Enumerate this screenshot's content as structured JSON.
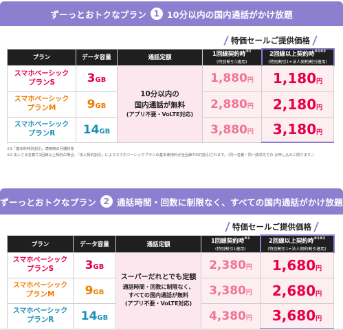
{
  "block1": {
    "title_pre": "ずーっとおトクなプラン",
    "number": "1",
    "title_post": "10分以内の国内通話がかけ放題",
    "sale": "特価セールご提供価格",
    "headers": {
      "plan": "プラン",
      "data": "データ容量",
      "call": "通話定額",
      "p1_main": "1回線契約時",
      "p1_sup": "※1",
      "p1_sub": "(特別割引1適用)",
      "p2_main": "2回線以上契約時",
      "p2_sup": "※1※2",
      "p2_sub": "(特別割引1+法人契約割引適用)"
    },
    "call_lines": [
      "10分以内の",
      "国内通話が無料",
      "(アプリ不要・VoLTE対応)"
    ],
    "rows": [
      {
        "name1": "スマホベーシック",
        "name2": "プランS",
        "cap": "3",
        "unit": "GB",
        "p1": "1,880",
        "p2": "1,180",
        "yen": "円"
      },
      {
        "name1": "スマホベーシック",
        "name2": "プランM",
        "cap": "9",
        "unit": "GB",
        "p1": "2,880",
        "p2": "2,180",
        "yen": "円"
      },
      {
        "name1": "スマホベーシック",
        "name2": "プランR",
        "cap": "14",
        "unit": "GB",
        "p1": "3,880",
        "p2": "3,180",
        "yen": "円"
      }
    ],
    "notes": [
      "※1「基本料特別割引」適用時の月額料金",
      "※2 法人さま名義で2回線以上契約の場合、「法人契約割引」によりスマホベーシックプランの基本使用料が全回線700円割引されます。（同一名義・同一請求先での お申し込みに限ります。）"
    ]
  },
  "block2": {
    "title_pre": "ずーっとおトクなプラン",
    "number": "2",
    "title_post": "通話時間・回数に制限なく、すべての国内通話がかけ放題",
    "sale": "特価セールご提供価格",
    "headers": {
      "plan": "プラン",
      "data": "データ容量",
      "call": "通話定額",
      "p1_main": "1回線契約時",
      "p1_sup": "※1",
      "p1_sub": "(特別割引1適用)",
      "p2_main": "2回線以上契約時",
      "p2_sup": "※1※2",
      "p2_sub": "(特別割引1+法人契約割引適用)"
    },
    "call_lines": [
      "スーパーだれとでも定額",
      "通話時間・回数に制限なく、",
      "すべての国内通話が無料",
      "(アプリ不要・VoLTE対応)"
    ],
    "rows": [
      {
        "name1": "スマホベーシック",
        "name2": "プランS",
        "cap": "3",
        "unit": "GB",
        "p1": "2,380",
        "p2": "1,680",
        "yen": "円"
      },
      {
        "name1": "スマホベーシック",
        "name2": "プランM",
        "cap": "9",
        "unit": "GB",
        "p1": "3,380",
        "p2": "2,680",
        "yen": "円"
      },
      {
        "name1": "スマホベーシック",
        "name2": "プランR",
        "cap": "14",
        "unit": "GB",
        "p1": "4,380",
        "p2": "3,680",
        "yen": "円"
      }
    ]
  },
  "colors": {
    "header_purple": "#8d7fd0",
    "plan_s": "#e6004c",
    "plan_m": "#ef7d00",
    "plan_r": "#1a8fb4",
    "pink_bg": "#fde7ee"
  }
}
